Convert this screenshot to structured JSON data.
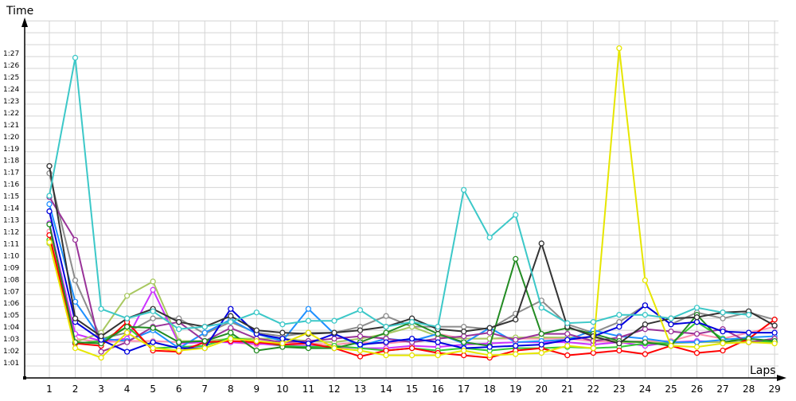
{
  "chart_data": {
    "type": "line",
    "title": "",
    "xlabel": "Laps",
    "ylabel": "Time",
    "x": [
      1,
      2,
      3,
      4,
      5,
      6,
      7,
      8,
      9,
      10,
      11,
      12,
      13,
      14,
      15,
      16,
      17,
      18,
      19,
      20,
      21,
      22,
      23,
      24,
      25,
      26,
      27,
      28,
      29
    ],
    "x_tick_labels": [
      "1",
      "2",
      "3",
      "4",
      "5",
      "6",
      "7",
      "8",
      "9",
      "10",
      "11",
      "12",
      "13",
      "14",
      "15",
      "16",
      "17",
      "18",
      "19",
      "20",
      "21",
      "22",
      "23",
      "24",
      "25",
      "26",
      "27",
      "28",
      "29"
    ],
    "y_unit": "seconds",
    "ylim": [
      60,
      90
    ],
    "y_tick_values": [
      61,
      62,
      63,
      64,
      65,
      66,
      67,
      68,
      69,
      70,
      71,
      72,
      73,
      74,
      75,
      76,
      77,
      78,
      79,
      80,
      81,
      82,
      83,
      84,
      85,
      86,
      87
    ],
    "y_tick_labels": [
      "1:01",
      "1:02",
      "1:03",
      "1:04",
      "1:05",
      "1:06",
      "1:07",
      "1:08",
      "1:09",
      "1:10",
      "1:11",
      "1:12",
      "1:13",
      "1:14",
      "1:15",
      "1:16",
      "1:17",
      "1:18",
      "1:19",
      "1:20",
      "1:21",
      "1:22",
      "1:23",
      "1:24",
      "1:25",
      "1:26",
      "1:27"
    ],
    "grid": true,
    "series": [
      {
        "color": "#8c8c8c",
        "values": [
          77.2,
          68.2,
          63.3,
          63.8,
          65.0,
          65.0,
          63.7,
          64.7,
          63.8,
          63.5,
          63.8,
          63.8,
          64.3,
          65.2,
          64.3,
          64.3,
          64.3,
          64.1,
          65.4,
          66.5,
          64.5,
          63.8,
          64.7,
          66.1,
          64.5,
          65.5,
          65.0,
          65.5,
          64.9
        ]
      },
      {
        "color": "#ff8fb0",
        "values": [
          72.3,
          63.3,
          63.0,
          63.1,
          63.1,
          63.0,
          63.1,
          63.0,
          62.8,
          63.0,
          62.9,
          62.8,
          63.0,
          62.9,
          63.1,
          63.7,
          63.3,
          63.3,
          63.3,
          63.3,
          63.3,
          63.1,
          63.0,
          63.1,
          63.1,
          63.7,
          63.3,
          63.8,
          64.3
        ]
      },
      {
        "color": "#cc33ff",
        "values": [
          73.0,
          63.7,
          63.1,
          63.3,
          67.4,
          62.9,
          63.0,
          63.0,
          62.9,
          62.7,
          62.7,
          62.6,
          62.5,
          62.5,
          62.7,
          62.6,
          62.8,
          62.9,
          63.0,
          63.0,
          63.0,
          62.8,
          63.0,
          62.7,
          63.0,
          63.1,
          63.0,
          63.0,
          63.3
        ]
      },
      {
        "color": "#a8c860",
        "values": [
          71.3,
          63.0,
          63.8,
          66.9,
          68.1,
          63.1,
          63.1,
          63.3,
          63.3,
          63.3,
          63.1,
          63.0,
          63.3,
          63.7,
          64.3,
          63.5,
          63.3,
          63.3,
          63.4,
          63.4,
          63.4,
          63.4,
          63.0,
          63.0,
          62.9,
          63.0,
          63.0,
          63.0,
          63.0
        ]
      },
      {
        "color": "#33cc33",
        "values": [
          71.6,
          62.9,
          63.1,
          64.3,
          62.5,
          62.6,
          62.7,
          63.4,
          63.1,
          62.7,
          62.6,
          62.7,
          62.5,
          62.3,
          62.5,
          62.3,
          62.5,
          62.3,
          62.5,
          62.5,
          62.6,
          62.5,
          62.6,
          62.9,
          62.9,
          64.7,
          63.3,
          63.1,
          63.0
        ]
      },
      {
        "color": "#1e90ff",
        "values": [
          74.6,
          66.4,
          63.3,
          63.1,
          64.0,
          62.5,
          63.8,
          64.9,
          63.7,
          63.1,
          65.8,
          63.7,
          62.7,
          63.3,
          63.1,
          63.7,
          62.9,
          64.2,
          63.0,
          63.1,
          63.2,
          64.0,
          63.5,
          63.3,
          63.0,
          63.0,
          63.2,
          63.4,
          63.5
        ]
      },
      {
        "color": "#993399",
        "values": [
          75.2,
          71.6,
          62.2,
          63.0,
          64.3,
          64.7,
          63.1,
          64.2,
          63.3,
          63.0,
          63.1,
          63.3,
          63.5,
          63.3,
          63.0,
          63.3,
          63.5,
          63.8,
          63.2,
          63.7,
          63.7,
          63.1,
          63.4,
          64.1,
          63.9,
          63.7,
          64.1,
          63.0,
          63.3
        ]
      },
      {
        "color": "#ff0000",
        "values": [
          72.0,
          62.9,
          62.7,
          64.7,
          62.3,
          62.2,
          63.0,
          63.1,
          63.0,
          62.8,
          62.9,
          62.5,
          61.8,
          62.3,
          62.5,
          62.1,
          61.9,
          61.7,
          62.3,
          62.5,
          61.9,
          62.1,
          62.3,
          62.0,
          62.7,
          62.1,
          62.3,
          63.3,
          64.9
        ]
      },
      {
        "color": "#228b22",
        "values": [
          72.9,
          63.0,
          62.9,
          64.3,
          64.2,
          63.0,
          63.1,
          63.8,
          62.3,
          62.6,
          62.5,
          62.5,
          63.0,
          63.8,
          64.7,
          63.7,
          63.0,
          62.7,
          70.0,
          63.7,
          64.2,
          63.7,
          63.1,
          63.0,
          62.7,
          65.3,
          63.0,
          63.3,
          63.1
        ]
      },
      {
        "color": "#0000dd",
        "values": [
          74.0,
          64.7,
          63.2,
          62.2,
          63.0,
          62.5,
          62.5,
          65.8,
          63.7,
          63.3,
          62.9,
          63.7,
          62.8,
          63.0,
          63.3,
          63.0,
          62.5,
          62.6,
          62.7,
          62.8,
          63.2,
          63.5,
          64.3,
          66.1,
          64.5,
          64.7,
          63.9,
          63.8,
          63.8
        ]
      },
      {
        "color": "#333333",
        "values": [
          77.8,
          65.0,
          63.5,
          65.0,
          65.8,
          64.7,
          64.3,
          65.2,
          64.0,
          63.8,
          63.7,
          63.8,
          64.0,
          64.3,
          65.0,
          64.1,
          63.9,
          64.2,
          64.9,
          71.3,
          64.3,
          63.5,
          62.9,
          64.5,
          65.0,
          65.1,
          65.5,
          65.6,
          64.4
        ]
      },
      {
        "color": "#e6e600",
        "values": [
          71.4,
          62.5,
          61.7,
          63.8,
          62.5,
          62.3,
          62.5,
          63.3,
          63.1,
          62.9,
          63.8,
          62.5,
          62.3,
          61.9,
          61.9,
          61.9,
          62.3,
          61.9,
          62.0,
          62.1,
          62.7,
          62.5,
          87.7,
          68.2,
          62.7,
          62.6,
          62.9,
          63.0,
          62.9
        ]
      },
      {
        "color": "#3cc8c8",
        "values": [
          75.3,
          86.9,
          65.8,
          65.0,
          65.6,
          64.1,
          64.3,
          64.7,
          65.5,
          64.5,
          64.8,
          64.8,
          65.7,
          64.3,
          64.7,
          64.3,
          75.8,
          71.8,
          73.7,
          65.9,
          64.6,
          64.7,
          65.3,
          65.3,
          65.0,
          65.9,
          65.5,
          65.3,
          null
        ]
      }
    ]
  }
}
